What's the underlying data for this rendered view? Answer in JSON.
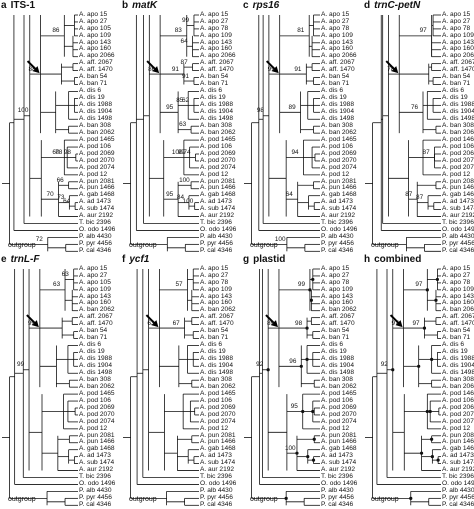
{
  "panels": [
    {
      "letter": "a",
      "name": "ITS-1",
      "italic": false,
      "taxa": [
        "A. apo 15",
        "A. apo 27",
        "A. apo 105",
        "A. apo 109",
        "A. apo 143",
        "A. apo 160",
        "A. apo 2066",
        "A. aff. 2067",
        "A. aff. 1470",
        "A. ban 54",
        "A. ban 71",
        "A. dis 6",
        "A. dis 19",
        "A. dis 1988",
        "A. dis 1904",
        "A. dis 1498",
        "A. ban 308",
        "A. ban 2062",
        "A. pod 1465",
        "A. pod 106",
        "A. pod 2069",
        "A. pod 2070",
        "A. pod 2074",
        "A. pod 12",
        "A. pun 2081",
        "A. pun 1466",
        "A. gab 1468",
        "A. ad 1473",
        "A. sub 1474",
        "A. aur 2192",
        "T. bic 2396",
        "O. odo 1496",
        "P. alb 4430",
        "P. pyr 4456",
        "P. cal 4346"
      ],
      "bootstrap": [
        "86",
        "88",
        "60",
        "78",
        "98",
        "70",
        "66",
        "73",
        "64",
        "100",
        "72"
      ],
      "outgroup": "outgroup"
    },
    {
      "letter": "b",
      "name": "matK",
      "italic": true,
      "taxa": [
        "A. apo 15",
        "A. apo 27",
        "A. apo 78",
        "A. apo 109",
        "A. apo 143",
        "A. apo 160",
        "A. apo 2066",
        "A. aff. 2067",
        "A. aff. 1470",
        "A. ban 54",
        "A. ban 71",
        "A. dis 6",
        "A. dis 19",
        "A. dis 1988",
        "A. dis 1904",
        "A. dis 1498",
        "A. ban 308",
        "A. ban 2062",
        "A. pod 1465",
        "A. pod 106",
        "A. pod 2069",
        "A. pod 2070",
        "A. pod 2074",
        "A. pod 12",
        "A. pun 2081",
        "A. pun 1466",
        "A. gab 1468",
        "A. ad 1473",
        "A. sub 1474",
        "A. aur 2192",
        "T. bic 2396",
        "O. odo 1496",
        "P. alb 4430",
        "P. pyr 4456",
        "P. cal 4346"
      ],
      "bootstrap": [
        "83",
        "99",
        "64",
        "91",
        "91",
        "87",
        "95",
        "85",
        "62",
        "63",
        "86",
        "100",
        "99",
        "74",
        "95",
        "100",
        "84",
        "100"
      ],
      "outgroup": "outgroup"
    },
    {
      "letter": "c",
      "name": "rps16",
      "italic": true,
      "taxa": [
        "A. apo 15",
        "A. apo 27",
        "A. apo 78",
        "A. apo 109",
        "A. apo 143",
        "A. apo 160",
        "A. apo 2066",
        "A. aff. 2067",
        "A. aff. 1470",
        "A. ban 54",
        "A. ban 71",
        "A. dis 6",
        "A. dis 19",
        "A. dis 1988",
        "A. dis 1904",
        "A. dis 1498",
        "A. ban 308",
        "A. ban 2062",
        "A. pod 1465",
        "A. pod 106",
        "A. pod 2069",
        "A. pod 2070",
        "A. pod 2074",
        "A. pod 12",
        "A. pun 2081",
        "A. pun 1466",
        "A. gab 1468",
        "A. ad 1473",
        "A. sub 1474",
        "A. aur 2192",
        "T. bic 2396",
        "O. odo 1496",
        "P. alb 4430",
        "P. pyr 4456",
        "P. cal 4346"
      ],
      "bootstrap": [
        "81",
        "91",
        "99",
        "89",
        "94",
        "64",
        "98",
        "100"
      ],
      "outgroup": "outgroup"
    },
    {
      "letter": "d",
      "name": "trnC-petN",
      "italic": true,
      "taxa": [
        "A. apo 15",
        "A. apo 27",
        "A. apo 78",
        "A. apo 109",
        "A. apo 143",
        "A. apo 160",
        "A. apo 2066",
        "A. aff. 2067",
        "A. aff. 1470",
        "A. ban 54",
        "A. ban 71",
        "A. dis 6",
        "A. dis 19",
        "A. dis 1988",
        "A. dis 1904",
        "A. dis 1498",
        "A. ban 308",
        "A. ban 2062",
        "A. pod 1465",
        "A. pod 106",
        "A. pod 2069",
        "A. pod 2070",
        "A. pod 2074",
        "A. pod 12",
        "A. pun 2081",
        "A. pun 1466",
        "A. gab 1468",
        "A. ad 1473",
        "A. sub 1474",
        "A. aur 2192",
        "T. bic 2396",
        "O. odo 1496",
        "P. alb 4430",
        "P. pyr 4456",
        "P. cal 4346"
      ],
      "bootstrap": [
        "97",
        "78",
        "76",
        "87",
        "87",
        "87"
      ],
      "outgroup": "outgroup"
    },
    {
      "letter": "e",
      "name": "trnL-F",
      "italic": true,
      "taxa": [
        "A. apo 15",
        "A. apo 27",
        "A. apo 105",
        "A. apo 109",
        "A. apo 143",
        "A. apo 160",
        "A. ban 2062",
        "A. aff. 2067",
        "A. aff. 1470",
        "A. ban 54",
        "A. ban 71",
        "A. dis 6",
        "A. dis 19",
        "A. dis 1988",
        "A. dis 1904",
        "A. dis 1498",
        "A. ban 308",
        "A. ban 2062",
        "A. pod 1465",
        "A. pod 106",
        "A. pod 2069",
        "A. pod 2070",
        "A. pod 2074",
        "A. pod 12",
        "A. pun 2081",
        "A. pun 1466",
        "A. gab 1468",
        "A. ad 1473",
        "A. sub 1474",
        "A. aur 2192",
        "T. bic 2396",
        "O. odo 1496",
        "P. alb 4430",
        "P. pyr 4456",
        "P. cal 4346"
      ],
      "bootstrap": [
        "63",
        "63",
        "99",
        "99"
      ],
      "outgroup": "outgroup"
    },
    {
      "letter": "f",
      "name": "ycf1",
      "italic": true,
      "taxa": [
        "A. apo 15",
        "A. apo 27",
        "A. apo 78",
        "A. apo 109",
        "A. apo 143",
        "A. apo 160",
        "A. ban 2062",
        "A. aff. 2067",
        "A. aff. 1470",
        "A. ban 54",
        "A. ban 71",
        "A. dis 6",
        "A. dis 19",
        "A. dis 1988",
        "A. dis 1904",
        "A. dis 1498",
        "A. ban 308",
        "A. ban 2062",
        "A. pod 1465",
        "A. pod 106",
        "A. pod 2069",
        "A. pod 2070",
        "A. pod 2074",
        "A. pod 12",
        "A. pun 2081",
        "A. pun 1466",
        "A. gab 1468",
        "A. ad 1473",
        "A. sub 1474",
        "A. aur 2192",
        "T. bic 2396",
        "O. odo 1496",
        "P. alb 4430",
        "P. pyr 4456",
        "P. cal 4346"
      ],
      "bootstrap": [
        "57",
        "67",
        "63"
      ],
      "outgroup": "outgroup"
    },
    {
      "letter": "g",
      "name": "plastid",
      "italic": false,
      "taxa": [
        "A. apo 15",
        "A. apo 27",
        "A. apo 78",
        "A. apo 109",
        "A. apo 143",
        "A. apo 160",
        "A. ban 2062",
        "A. aff. 2067",
        "A. aff. 1470",
        "A. ban 54",
        "A. ban 71",
        "A. dis 6",
        "A. dis 19",
        "A. dis 1988",
        "A. dis 1904",
        "A. dis 1498",
        "A. ban 308",
        "A. ban 2062",
        "A. pod 1465",
        "A. pod 106",
        "A. pod 2069",
        "A. pod 2070",
        "A. pod 2074",
        "A. pod 12",
        "A. pun 2081",
        "A. pun 1466",
        "A. gab 1468",
        "A. ad 1473",
        "A. sub 1474",
        "A. aur 2192",
        "T. bic 2396",
        "O. odo 1496",
        "P. alb 4430",
        "P. pyr 4456",
        "P. cal 4346"
      ],
      "bootstrap": [
        "99",
        "98",
        "96",
        "89",
        "95",
        "100",
        "92"
      ],
      "outgroup": "outgroup"
    },
    {
      "letter": "h",
      "name": "combined",
      "italic": false,
      "taxa": [
        "A. apo 15",
        "A. apo 27",
        "A. apo 78",
        "A. apo 109",
        "A. apo 143",
        "A. apo 160",
        "A. ban 2062",
        "A. aff. 2067",
        "A. aff. 1470",
        "A. ban 54",
        "A. ban 71",
        "A. dis 6",
        "A. dis 19",
        "A. dis 1988",
        "A. dis 1904",
        "A. dis 1498",
        "A. ban 308",
        "A. ban 2062",
        "A. pod 1465",
        "A. pod 106",
        "A. pod 2069",
        "A. pod 2070",
        "A. pod 2074",
        "A. pod 12",
        "A. pun 2081",
        "A. pun 1466",
        "A. gab 1468",
        "A. ad 1473",
        "A. sub 1474",
        "A. aur 2192",
        "T. bic 2396",
        "O. odo 1496",
        "P. alb 4430",
        "P. pyr 4456",
        "P. cal 4346"
      ],
      "bootstrap": [
        "97",
        "97",
        "97",
        "92"
      ],
      "outgroup": "outgroup"
    }
  ]
}
